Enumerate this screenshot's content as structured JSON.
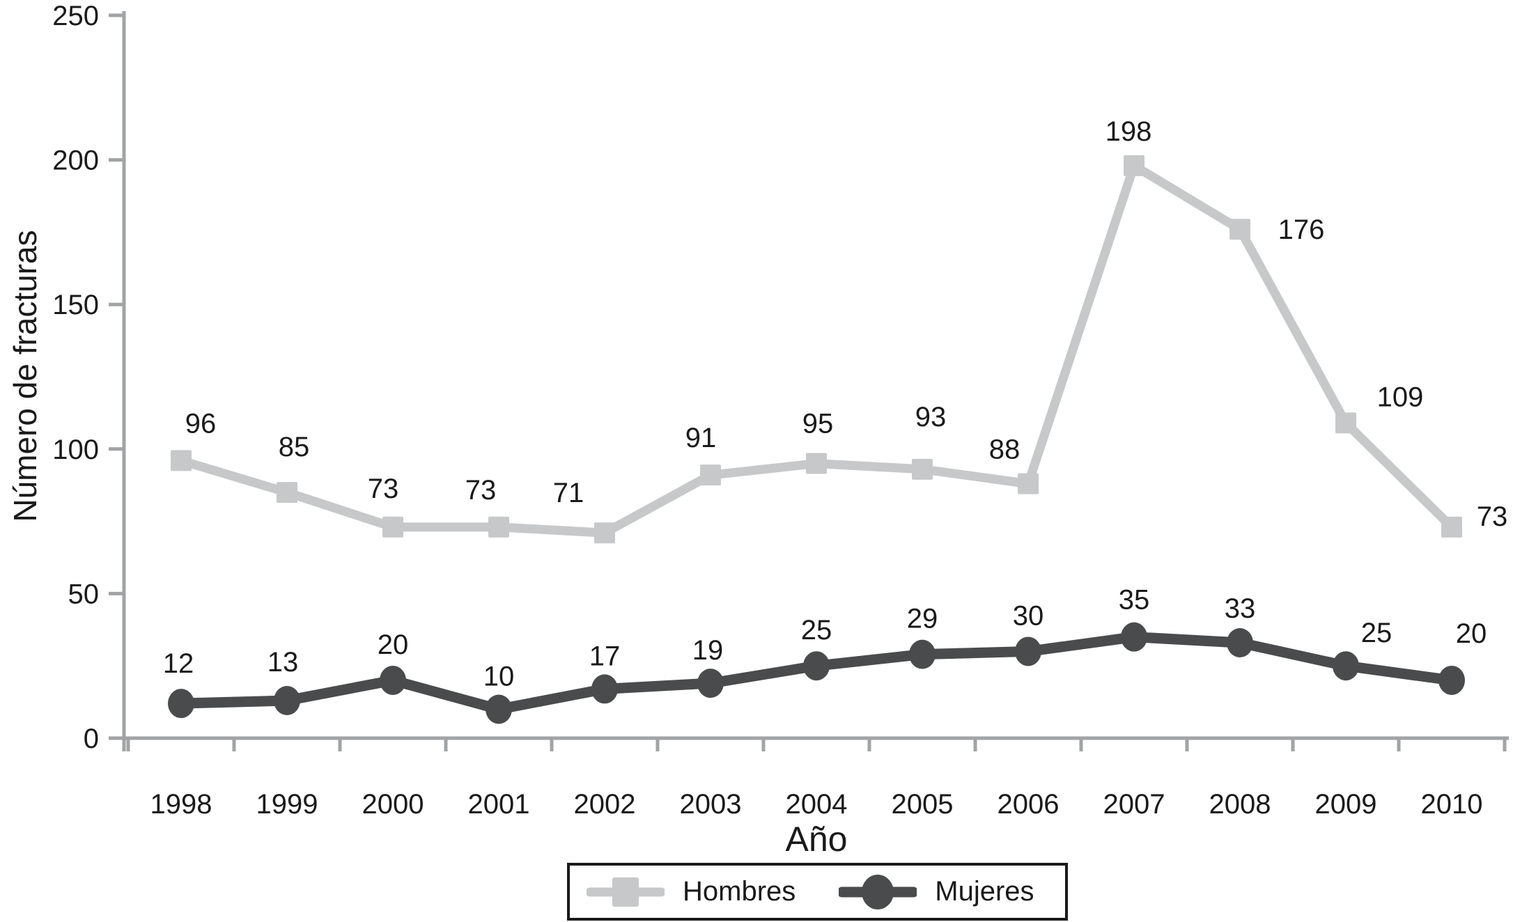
{
  "chart_data": {
    "type": "line",
    "title": "",
    "xlabel": "Año",
    "ylabel": "Número de fracturas",
    "categories": [
      "1998",
      "1999",
      "2000",
      "2001",
      "2002",
      "2003",
      "2004",
      "2005",
      "2006",
      "2007",
      "2008",
      "2009",
      "2010"
    ],
    "ylim": [
      0,
      250
    ],
    "y_ticks": [
      0,
      50,
      100,
      150,
      200,
      250
    ],
    "grid": false,
    "legend_position": "bottom",
    "axis_color": "#a1a3a5",
    "text_color": "#1a1a1a",
    "series": [
      {
        "name": "Hombres",
        "marker": "square",
        "color": "#c7c8ca",
        "line_width": 13,
        "values": [
          96,
          85,
          73,
          73,
          71,
          91,
          95,
          93,
          88,
          198,
          176,
          109,
          73
        ],
        "label_offsets": [
          [
            28,
            -6
          ],
          [
            10,
            -18
          ],
          [
            -14,
            -8
          ],
          [
            -26,
            -6
          ],
          [
            -52,
            -10
          ],
          [
            -14,
            -6
          ],
          [
            2,
            -10
          ],
          [
            12,
            -28
          ],
          [
            -34,
            -2
          ],
          [
            -8,
            -2
          ],
          [
            88,
            48
          ],
          [
            78,
            10
          ],
          [
            58,
            32
          ]
        ]
      },
      {
        "name": "Mujeres",
        "marker": "circle",
        "color": "#4a4b4d",
        "line_width": 15,
        "values": [
          12,
          13,
          20,
          10,
          17,
          19,
          25,
          29,
          30,
          35,
          33,
          25,
          20
        ],
        "label_offsets": [
          [
            -4,
            -10
          ],
          [
            -6,
            -8
          ],
          [
            0,
            -4
          ],
          [
            0,
            0
          ],
          [
            0,
            0
          ],
          [
            -4,
            0
          ],
          [
            0,
            -4
          ],
          [
            0,
            -4
          ],
          [
            0,
            -4
          ],
          [
            0,
            -6
          ],
          [
            0,
            -2
          ],
          [
            44,
            0
          ],
          [
            28,
            -20
          ]
        ]
      }
    ]
  }
}
